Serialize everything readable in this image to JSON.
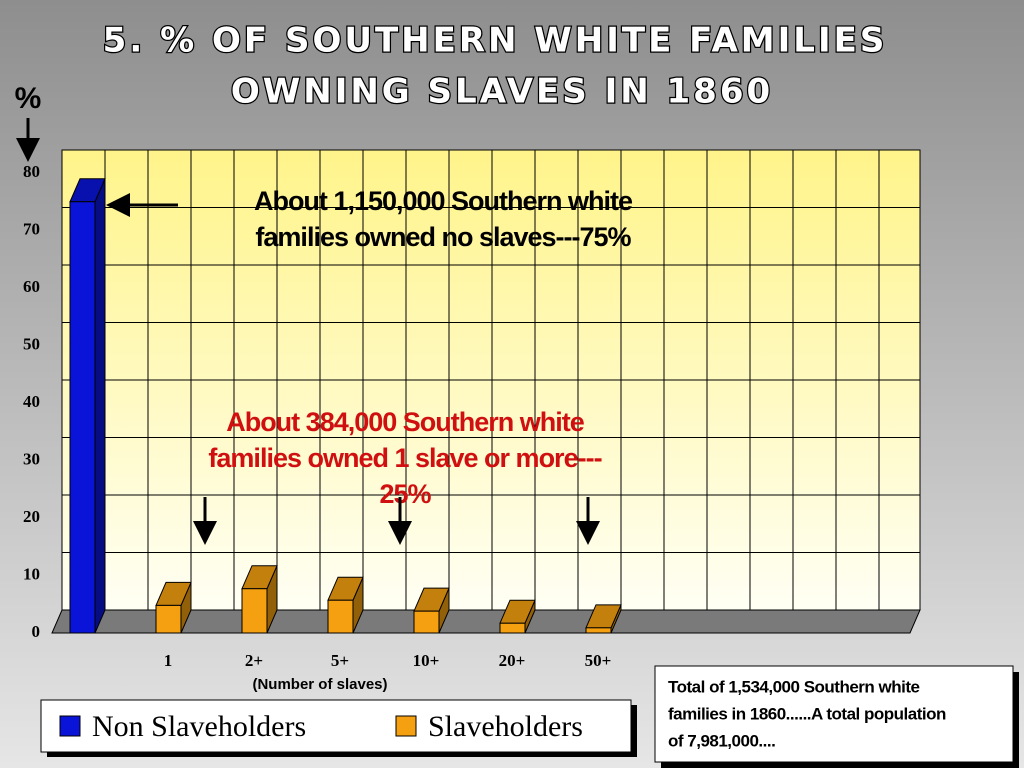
{
  "chart_data": {
    "type": "bar3d",
    "title": [
      "5. % OF SOUTHERN WHITE FAMILIES",
      "OWNING SLAVES IN 1860"
    ],
    "y_label": "%",
    "x_label": "(Number of slaves)",
    "categories": [
      null,
      "1",
      "2+",
      "5+",
      "10+",
      "20+",
      "50+"
    ],
    "series": [
      {
        "name": "Non Slaveholders",
        "color": "#0a14d8",
        "values": [
          75,
          null,
          null,
          null,
          null,
          null,
          null
        ]
      },
      {
        "name": "Slaveholders",
        "color": "#f5a010",
        "values": [
          null,
          4.8,
          7.7,
          5.7,
          3.8,
          1.7,
          0.9
        ]
      }
    ],
    "ylim": [
      0,
      80
    ],
    "yticks": [
      0,
      10,
      20,
      30,
      40,
      50,
      60,
      70,
      80
    ],
    "grid": true,
    "legend": "bottom-left",
    "annotations": [
      {
        "lines": [
          "About 1,150,000 Southern white",
          "families owned no slaves---75%"
        ],
        "color": "#000000"
      },
      {
        "lines": [
          "About 384,000 Southern white",
          "families owned 1 slave or more---",
          "25%"
        ],
        "color": "#d01010"
      }
    ],
    "note": [
      "Total of 1,534,000 Southern white",
      "families in 1860......A total population",
      "of 7,981,000...."
    ]
  }
}
